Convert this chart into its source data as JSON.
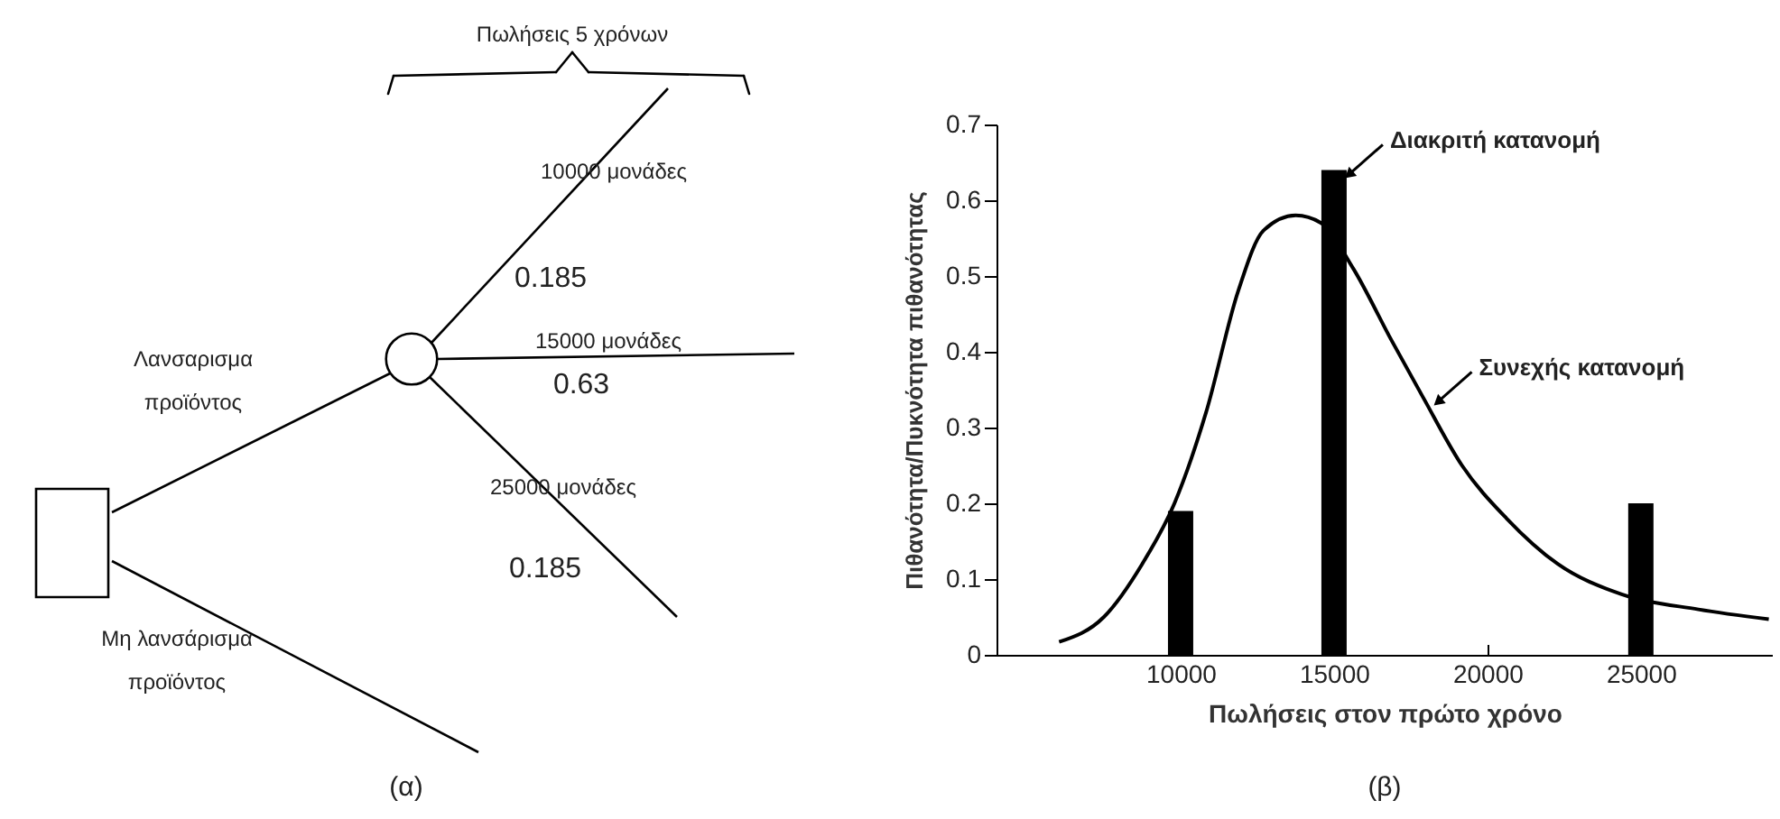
{
  "chart_data": [
    {
      "type": "other",
      "annotations": [
        "Πωλήσεις 5 χρόνων",
        "10000 μονάδες",
        "0.185",
        "15000 μονάδες",
        "0.63",
        "25000 μονάδες",
        "0.185",
        "Λανσαρισμα\nπροϊόντος",
        "Μη λανσάρισμα\nπροϊόντος",
        "(α)"
      ]
    },
    {
      "type": "bar",
      "xlabel": "Πωλήσεις στον πρώτο χρόνο",
      "ylabel": "Πιθανότητα/Πυκνότητα πιθανότητας",
      "xlim": [
        4000,
        29300
      ],
      "xticks": [
        10000,
        15000,
        20000,
        25000
      ],
      "ylim": [
        0,
        0.7
      ],
      "yticks": [
        0,
        0.1,
        0.2,
        0.3,
        0.4,
        0.5,
        0.6,
        0.7
      ],
      "x": [
        10000,
        15000,
        25000
      ],
      "series": [
        {
          "type": "bar",
          "color": "#000000",
          "values": [
            0.19,
            0.64,
            0.2
          ]
        },
        {
          "type": "line",
          "color": "#000000",
          "x": [
            6040,
            7500,
            8750,
            9800,
            10830,
            11875,
            12700,
            13750,
            14580,
            15625,
            16875,
            17900,
            19170,
            20625,
            22290,
            24375,
            26875,
            29170
          ],
          "values": [
            0.017,
            0.05,
            0.12,
            0.2,
            0.32,
            0.48,
            0.56,
            0.58,
            0.57,
            0.51,
            0.415,
            0.34,
            0.25,
            0.18,
            0.12,
            0.08,
            0.06,
            0.047
          ]
        }
      ],
      "annotations": [
        {
          "text": "Διακριτή κατανομή",
          "x": 15000,
          "y": 0.64
        },
        {
          "text": "Συνεχής κατανομή",
          "x": 17900,
          "y": 0.34
        },
        "(β)"
      ]
    }
  ]
}
